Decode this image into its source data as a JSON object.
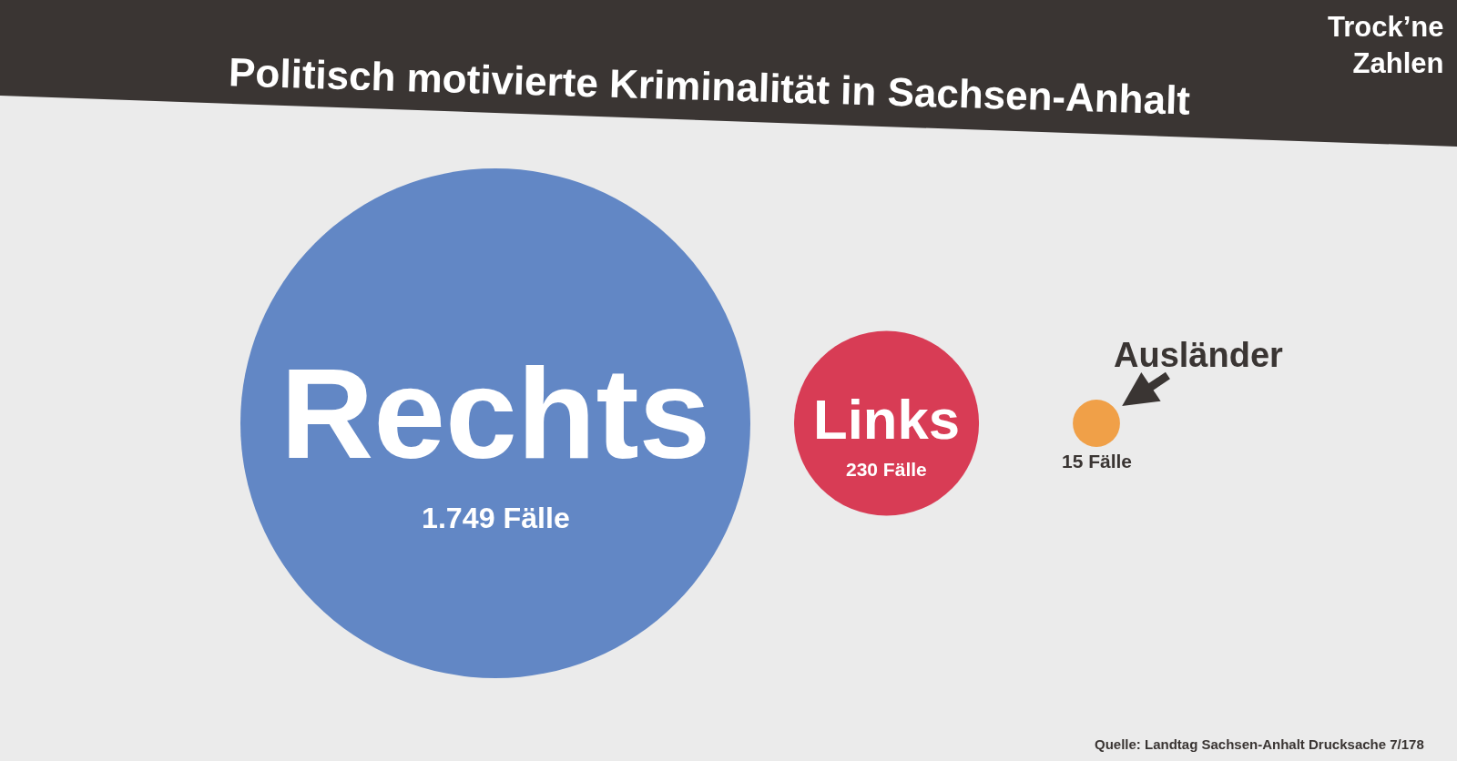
{
  "chart_data": {
    "type": "other",
    "title": "Politisch motivierte Kriminalität in Sachsen-Anhalt",
    "subtitle": "Trock’ne Zahlen",
    "categories": [
      "Rechts",
      "Links",
      "Ausländer"
    ],
    "values": [
      1749,
      230,
      15
    ],
    "value_labels": [
      "1.749 Fälle",
      "230 Fälle",
      "15 Fälle"
    ],
    "colors": [
      "#6287c5",
      "#d83c55",
      "#f0a048"
    ],
    "annotations": [
      "Quelle: Landtag Sachsen-Anhalt Drucksache 7/178"
    ]
  }
}
